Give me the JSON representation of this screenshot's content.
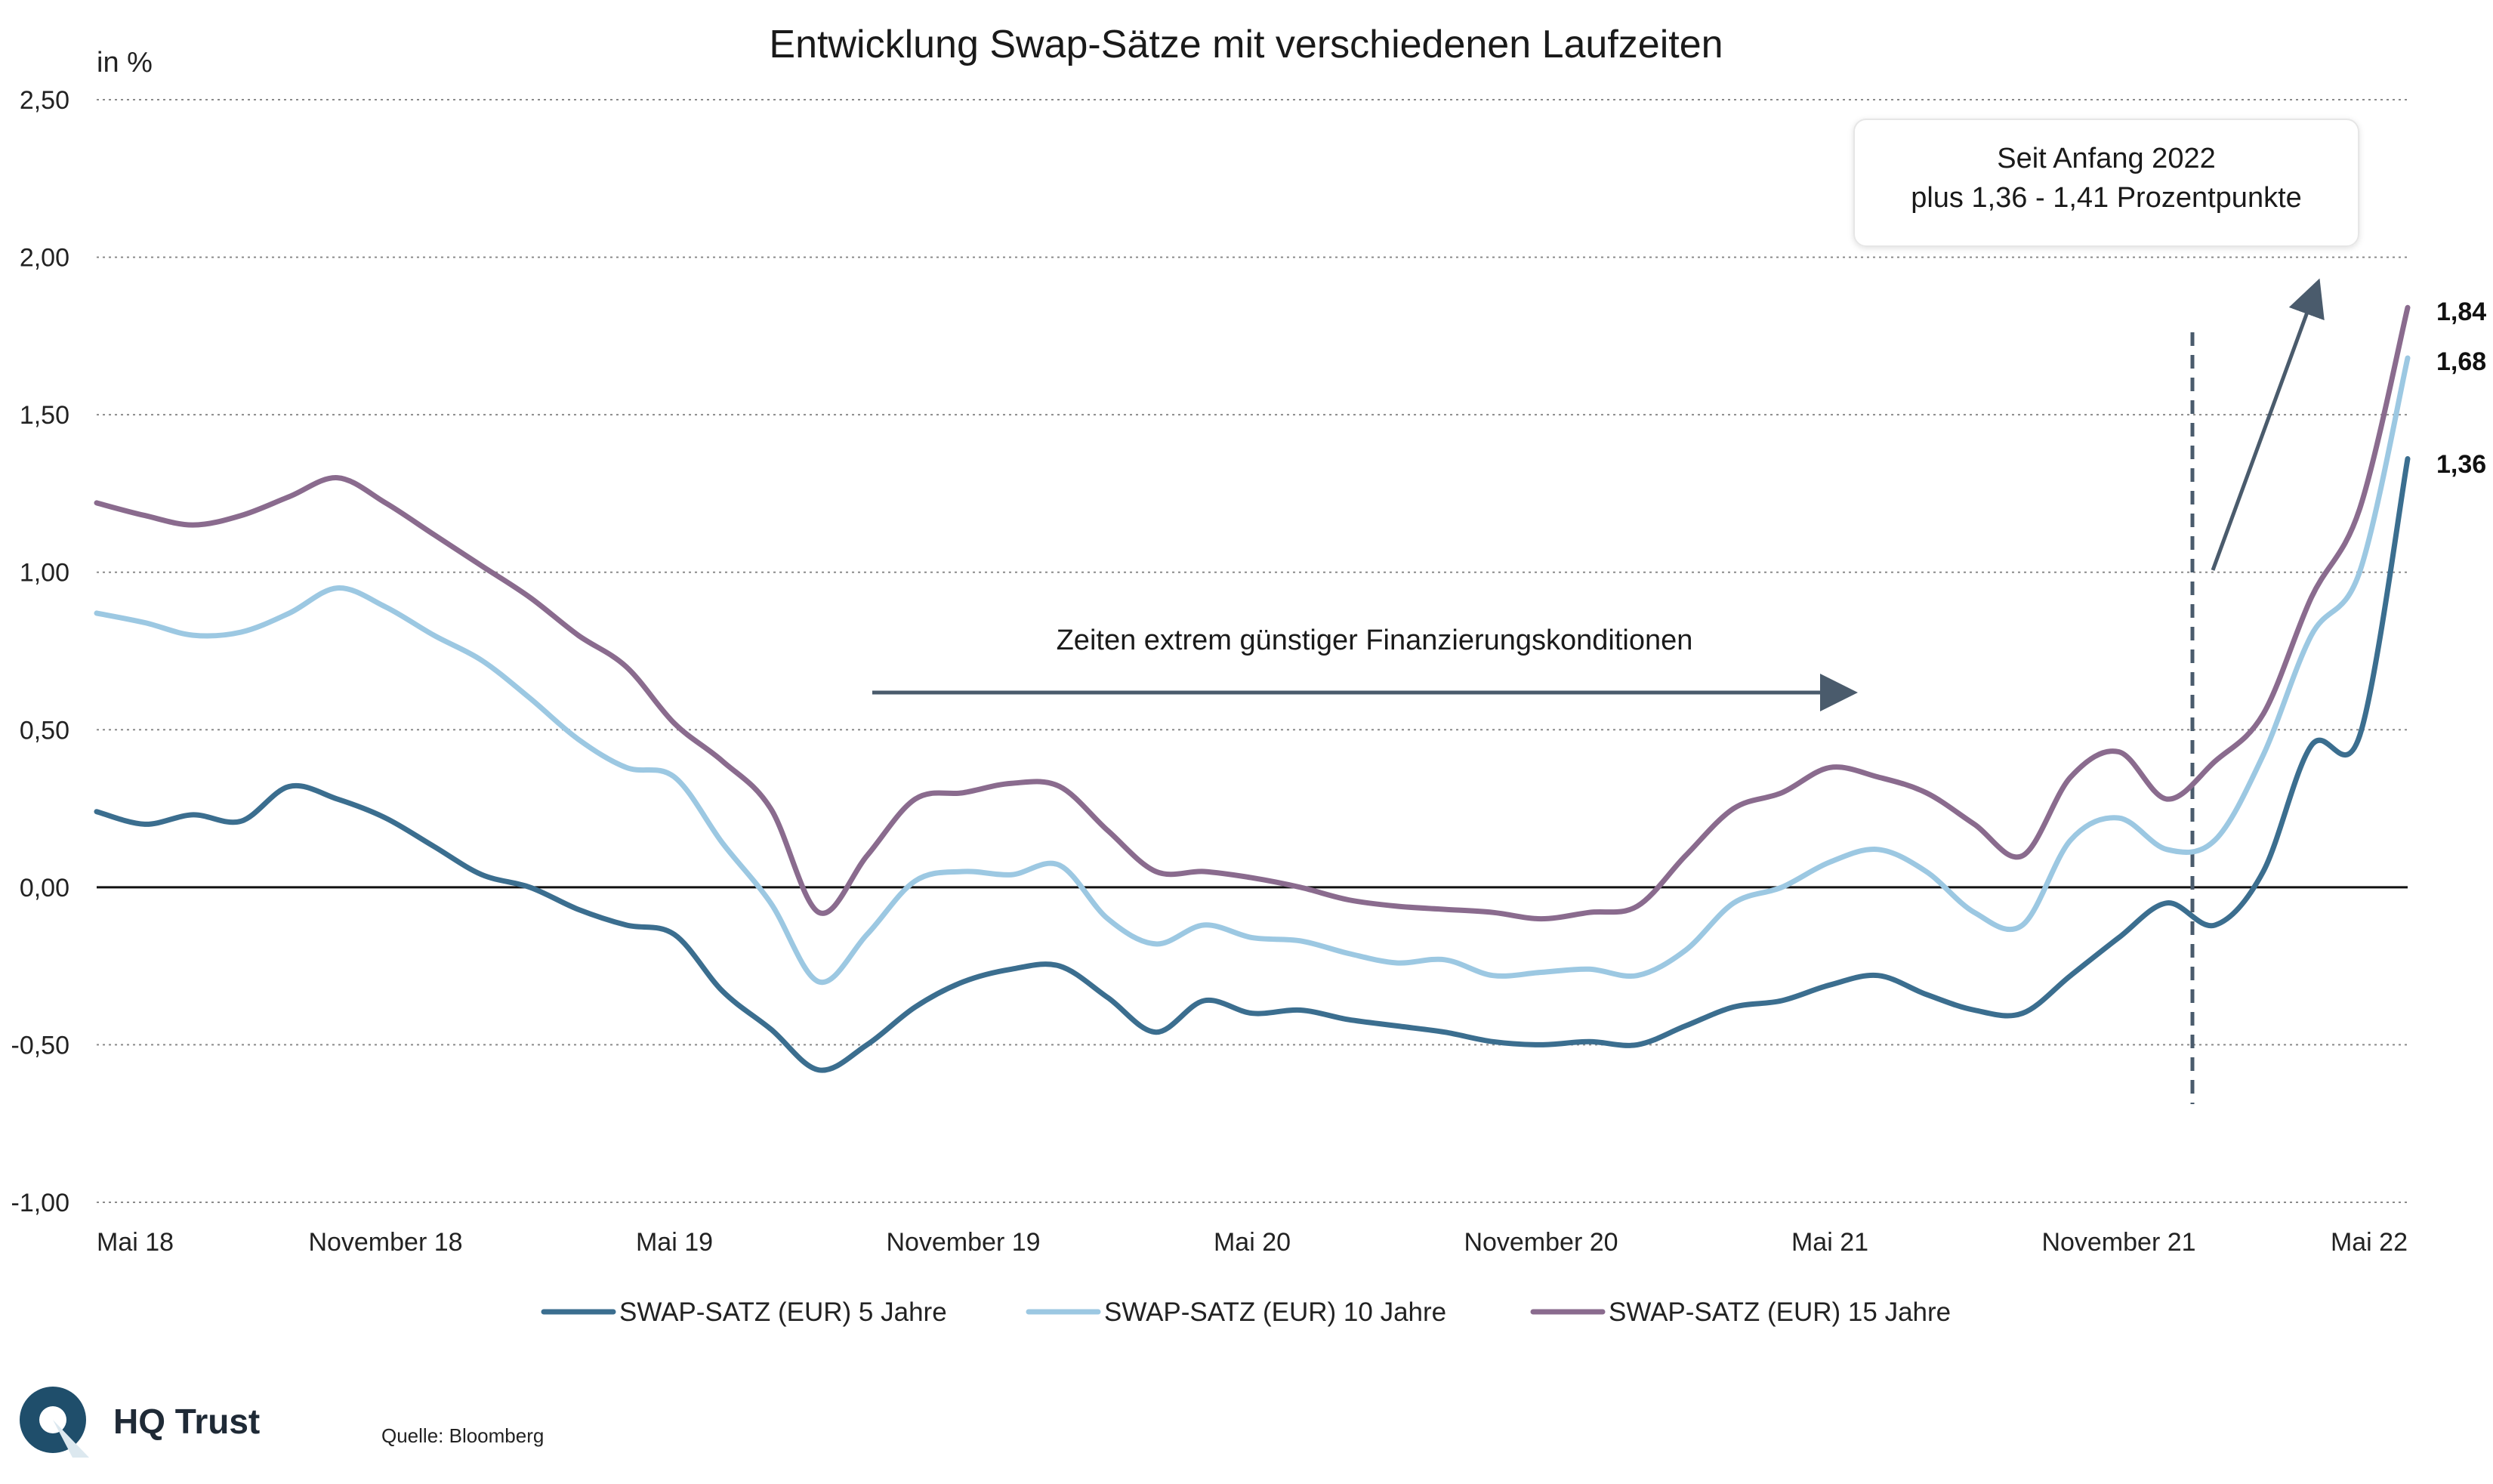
{
  "chart_data": {
    "type": "line",
    "title": "Entwicklung Swap-Sätze mit verschiedenen Laufzeiten",
    "ylabel": "in %",
    "ylim": [
      -1.0,
      2.5
    ],
    "yticks": [
      2.5,
      2.0,
      1.5,
      1.0,
      0.5,
      0.0,
      -0.5,
      -1.0
    ],
    "ytick_labels": [
      "2,50",
      "2,00",
      "1,50",
      "1,00",
      "0,50",
      "0,00",
      "-0,50",
      "-1,00"
    ],
    "xlim": [
      "2018-05",
      "2022-05"
    ],
    "xticks": [
      "2018-05",
      "2018-11",
      "2019-05",
      "2019-11",
      "2020-05",
      "2020-11",
      "2021-05",
      "2021-11",
      "2022-05"
    ],
    "xtick_labels": [
      "Mai 18",
      "November 18",
      "Mai 19",
      "November 19",
      "Mai 20",
      "November 20",
      "Mai 21",
      "November 21",
      "Mai 22"
    ],
    "grid": "horizontal-dotted",
    "legend_position": "bottom",
    "x": [
      "2018-05",
      "2018-06",
      "2018-07",
      "2018-08",
      "2018-09",
      "2018-10",
      "2018-11",
      "2018-12",
      "2019-01",
      "2019-02",
      "2019-03",
      "2019-04",
      "2019-05",
      "2019-06",
      "2019-07",
      "2019-08",
      "2019-09",
      "2019-10",
      "2019-11",
      "2019-12",
      "2020-01",
      "2020-02",
      "2020-03",
      "2020-04",
      "2020-05",
      "2020-06",
      "2020-07",
      "2020-08",
      "2020-09",
      "2020-10",
      "2020-11",
      "2020-12",
      "2021-01",
      "2021-02",
      "2021-03",
      "2021-04",
      "2021-05",
      "2021-06",
      "2021-07",
      "2021-08",
      "2021-09",
      "2021-10",
      "2021-11",
      "2021-12",
      "2022-01",
      "2022-02",
      "2022-03",
      "2022-04",
      "2022-05"
    ],
    "series": [
      {
        "name": "SWAP-SATZ (EUR) 5 Jahre",
        "color": "#3b6e8f",
        "values": [
          0.24,
          0.2,
          0.23,
          0.21,
          0.32,
          0.28,
          0.22,
          0.13,
          0.04,
          0.0,
          -0.07,
          -0.12,
          -0.15,
          -0.33,
          -0.45,
          -0.58,
          -0.5,
          -0.38,
          -0.3,
          -0.26,
          -0.25,
          -0.35,
          -0.46,
          -0.36,
          -0.4,
          -0.39,
          -0.42,
          -0.44,
          -0.46,
          -0.49,
          -0.5,
          -0.49,
          -0.5,
          -0.44,
          -0.38,
          -0.36,
          -0.31,
          -0.28,
          -0.34,
          -0.39,
          -0.4,
          -0.28,
          -0.16,
          -0.05,
          -0.12,
          0.05,
          0.45,
          0.48,
          1.36
        ]
      },
      {
        "name": "SWAP-SATZ (EUR) 10 Jahre",
        "color": "#9cc8e2",
        "values": [
          0.87,
          0.84,
          0.8,
          0.81,
          0.87,
          0.95,
          0.89,
          0.8,
          0.72,
          0.6,
          0.47,
          0.38,
          0.35,
          0.14,
          -0.05,
          -0.3,
          -0.15,
          0.02,
          0.05,
          0.04,
          0.07,
          -0.1,
          -0.18,
          -0.12,
          -0.16,
          -0.17,
          -0.21,
          -0.24,
          -0.23,
          -0.28,
          -0.27,
          -0.26,
          -0.28,
          -0.2,
          -0.05,
          0.0,
          0.08,
          0.12,
          0.05,
          -0.08,
          -0.12,
          0.15,
          0.22,
          0.12,
          0.15,
          0.42,
          0.8,
          1.0,
          1.68
        ]
      },
      {
        "name": "SWAP-SATZ (EUR) 15 Jahre",
        "color": "#8a6b8e",
        "values": [
          1.22,
          1.18,
          1.15,
          1.18,
          1.24,
          1.3,
          1.22,
          1.12,
          1.02,
          0.92,
          0.8,
          0.7,
          0.52,
          0.4,
          0.25,
          -0.08,
          0.1,
          0.28,
          0.3,
          0.33,
          0.32,
          0.18,
          0.05,
          0.05,
          0.03,
          0.0,
          -0.04,
          -0.06,
          -0.07,
          -0.08,
          -0.1,
          -0.08,
          -0.06,
          0.1,
          0.25,
          0.3,
          0.38,
          0.35,
          0.3,
          0.2,
          0.1,
          0.35,
          0.43,
          0.28,
          0.4,
          0.55,
          0.92,
          1.2,
          1.84
        ]
      }
    ],
    "end_labels": [
      "1,84",
      "1,68",
      "1,36"
    ],
    "annotations": {
      "period_text": "Zeiten extrem günstiger Finanzierungskonditionen",
      "box_line1": "Seit Anfang 2022",
      "box_line2": "plus 1,36 - 1,41 Prozentpunkte"
    }
  },
  "footer": {
    "brand": "HQ Trust",
    "source": "Quelle: Bloomberg"
  }
}
